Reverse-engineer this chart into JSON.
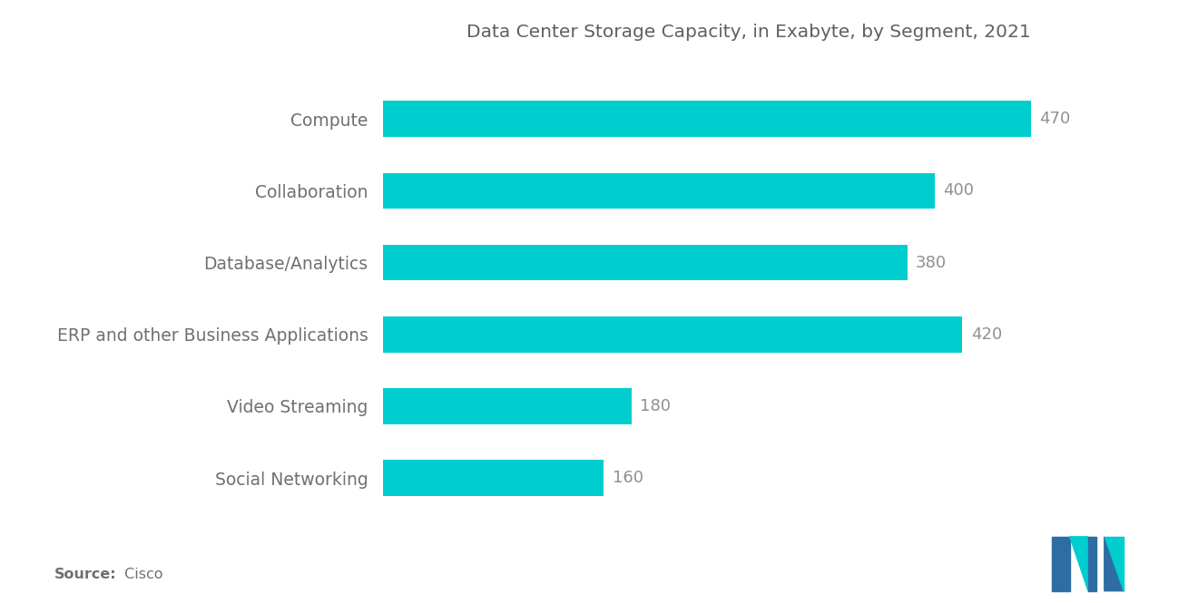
{
  "title": "Data Center Storage Capacity, in Exabyte, by Segment, 2021",
  "categories": [
    "Compute",
    "Collaboration",
    "Database/Analytics",
    "ERP and other Business Applications",
    "Video Streaming",
    "Social Networking"
  ],
  "values": [
    470,
    400,
    380,
    420,
    180,
    160
  ],
  "bar_color": "#00CECE",
  "background_color": "#ffffff",
  "label_color": "#707070",
  "title_color": "#606060",
  "value_color": "#909090",
  "source_bold": "Source:",
  "source_plain": " Cisco",
  "xlim_max": 530,
  "bar_height": 0.5,
  "title_fontsize": 14.5,
  "label_fontsize": 13.5,
  "value_fontsize": 13,
  "source_fontsize": 11.5,
  "logo_blue": "#2E6DA4",
  "logo_teal": "#00CECE"
}
